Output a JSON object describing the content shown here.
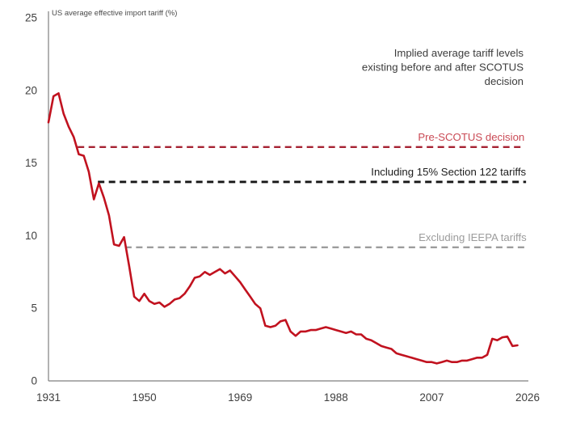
{
  "page": {
    "background": "#ffffff"
  },
  "chart_data": {
    "type": "line",
    "title": "",
    "axis_label": "US average effective import tariff (%)",
    "xlabel": "",
    "ylabel": "US average effective import tariff (%)",
    "xlim": [
      1931,
      2026
    ],
    "ylim": [
      0,
      25
    ],
    "grid": false,
    "x_ticks": [
      "1931",
      "1950",
      "1969",
      "1988",
      "2007",
      "2026"
    ],
    "y_ticks": [
      "0",
      "5",
      "10",
      "15",
      "20",
      "25"
    ],
    "annotation": {
      "lines": [
        "Implied average tariff levels",
        "existing before and after SCOTUS",
        "decision"
      ],
      "color": "#3c3c3c",
      "position": "top-right"
    },
    "series": [
      {
        "name": "US average effective import tariff (%)",
        "color": "#c1121f",
        "years": [
          1931,
          1932,
          1933,
          1934,
          1935,
          1936,
          1937,
          1938,
          1939,
          1940,
          1941,
          1942,
          1943,
          1944,
          1945,
          1946,
          1947,
          1948,
          1949,
          1950,
          1951,
          1952,
          1953,
          1954,
          1955,
          1956,
          1957,
          1958,
          1959,
          1960,
          1961,
          1962,
          1963,
          1964,
          1965,
          1966,
          1967,
          1968,
          1969,
          1970,
          1971,
          1972,
          1973,
          1974,
          1975,
          1976,
          1977,
          1978,
          1979,
          1980,
          1981,
          1982,
          1983,
          1984,
          1985,
          1986,
          1987,
          1988,
          1989,
          1990,
          1991,
          1992,
          1993,
          1994,
          1995,
          1996,
          1997,
          1998,
          1999,
          2000,
          2001,
          2002,
          2003,
          2004,
          2005,
          2006,
          2007,
          2008,
          2009,
          2010,
          2011,
          2012,
          2013,
          2014,
          2015,
          2016,
          2017,
          2018,
          2019,
          2020,
          2021,
          2022,
          2023,
          2024
        ],
        "values": [
          17.8,
          19.6,
          19.8,
          18.4,
          17.5,
          16.8,
          15.6,
          15.5,
          14.4,
          12.5,
          13.6,
          12.6,
          11.4,
          9.4,
          9.3,
          9.9,
          7.9,
          5.8,
          5.5,
          6.0,
          5.5,
          5.3,
          5.4,
          5.1,
          5.3,
          5.6,
          5.7,
          6.0,
          6.5,
          7.1,
          7.2,
          7.5,
          7.3,
          7.5,
          7.7,
          7.4,
          7.6,
          7.2,
          6.8,
          6.3,
          5.8,
          5.3,
          5.0,
          3.8,
          3.7,
          3.8,
          4.1,
          4.2,
          3.4,
          3.1,
          3.4,
          3.4,
          3.5,
          3.5,
          3.6,
          3.7,
          3.6,
          3.5,
          3.4,
          3.3,
          3.4,
          3.2,
          3.2,
          2.9,
          2.8,
          2.6,
          2.4,
          2.3,
          2.2,
          1.9,
          1.8,
          1.7,
          1.6,
          1.5,
          1.4,
          1.3,
          1.3,
          1.2,
          1.3,
          1.4,
          1.3,
          1.3,
          1.4,
          1.4,
          1.5,
          1.6,
          1.6,
          1.8,
          2.9,
          2.8,
          3.0,
          3.05,
          2.4,
          2.45
        ]
      }
    ],
    "reference_lines": [
      {
        "id": "pre-scotus",
        "label": "Pre-SCOTUS decision",
        "value": 16.1,
        "start_year": 1936.8,
        "end_year": 2025.4,
        "line_color": "#a62333",
        "label_color": "#ca4a55"
      },
      {
        "id": "section-122",
        "label": "Including 15% Section 122 tariffs",
        "value": 13.7,
        "start_year": 1940.8,
        "end_year": 2025.7,
        "line_color": "#161616",
        "label_color": "#1c1c1c"
      },
      {
        "id": "excluding-ieepa",
        "label": "Excluding IEEPA tariffs",
        "value": 9.2,
        "start_year": 1946.2,
        "end_year": 2025.8,
        "line_color": "#9c9c9c",
        "label_color": "#9c9c9c"
      }
    ],
    "styles": {
      "axis_color": "#7f7f7f",
      "tick_label_color": "#404040",
      "axis_title_color": "#4a4a4a"
    }
  }
}
